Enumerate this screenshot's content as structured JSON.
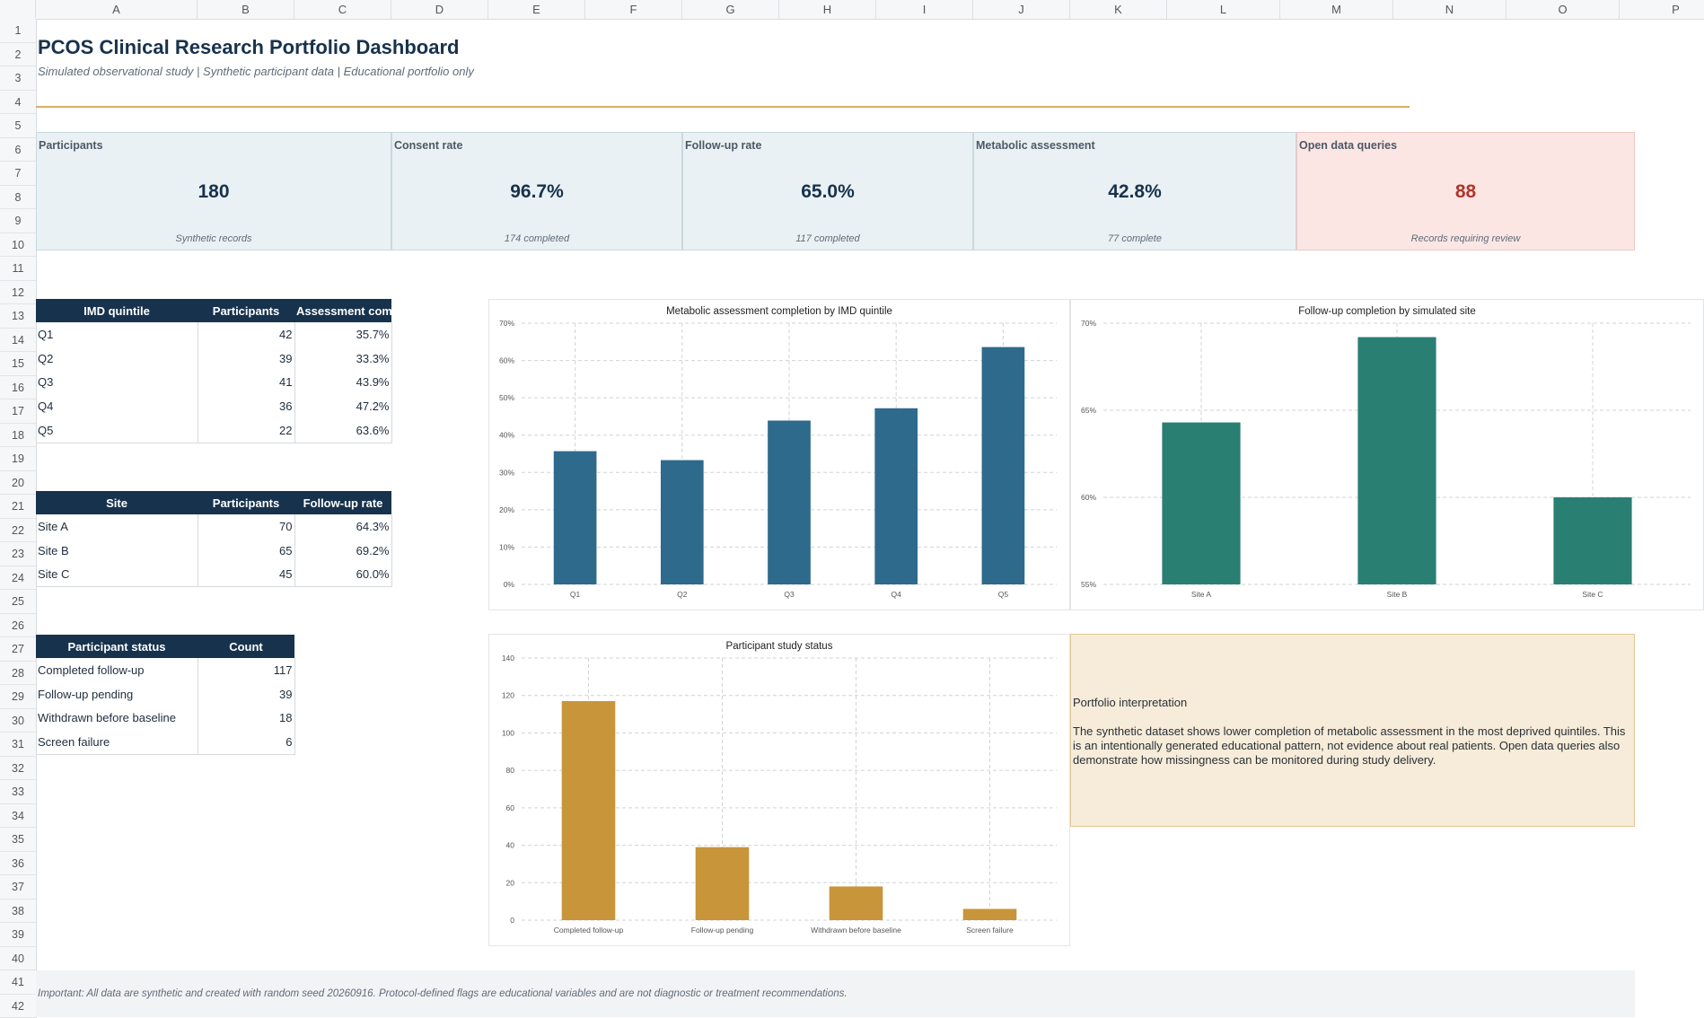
{
  "columns": [
    "A",
    "B",
    "C",
    "D",
    "E",
    "F",
    "G",
    "H",
    "I",
    "J",
    "K",
    "L",
    "M",
    "N",
    "O",
    "P"
  ],
  "rows": [
    1,
    2,
    3,
    4,
    5,
    6,
    7,
    8,
    9,
    10,
    11,
    12,
    13,
    14,
    15,
    16,
    17,
    18,
    19,
    20,
    21,
    22,
    23,
    24,
    25,
    26,
    27,
    28,
    29,
    30,
    31,
    32,
    33,
    34,
    35,
    36,
    37,
    38,
    39,
    40,
    41,
    42
  ],
  "header": {
    "title": "PCOS Clinical Research Portfolio Dashboard",
    "subtitle": "Simulated observational study | Synthetic participant data | Educational portfolio only"
  },
  "kpis": [
    {
      "label": "Participants",
      "value": "180",
      "note": "Synthetic records"
    },
    {
      "label": "Consent rate",
      "value": "96.7%",
      "note": "174 completed"
    },
    {
      "label": "Follow-up rate",
      "value": "65.0%",
      "note": "117 completed"
    },
    {
      "label": "Metabolic assessment",
      "value": "42.8%",
      "note": "77 complete"
    },
    {
      "label": "Open data queries",
      "value": "88",
      "note": "Records requiring review"
    }
  ],
  "imd_table": {
    "headers": [
      "IMD quintile",
      "Participants",
      "Assessment com"
    ],
    "rows": [
      [
        "Q1",
        "42",
        "35.7%"
      ],
      [
        "Q2",
        "39",
        "33.3%"
      ],
      [
        "Q3",
        "41",
        "43.9%"
      ],
      [
        "Q4",
        "36",
        "47.2%"
      ],
      [
        "Q5",
        "22",
        "63.6%"
      ]
    ]
  },
  "site_table": {
    "headers": [
      "Site",
      "Participants",
      "Follow-up rate"
    ],
    "rows": [
      [
        "Site A",
        "70",
        "64.3%"
      ],
      [
        "Site B",
        "65",
        "69.2%"
      ],
      [
        "Site C",
        "45",
        "60.0%"
      ]
    ]
  },
  "status_table": {
    "headers": [
      "Participant status",
      "Count"
    ],
    "rows": [
      [
        "Completed follow-up",
        "117"
      ],
      [
        "Follow-up pending",
        "39"
      ],
      [
        "Withdrawn before baseline",
        "18"
      ],
      [
        "Screen failure",
        "6"
      ]
    ]
  },
  "chart_data": [
    {
      "type": "bar",
      "title": "Metabolic assessment completion by IMD quintile",
      "categories": [
        "Q1",
        "Q2",
        "Q3",
        "Q4",
        "Q5"
      ],
      "values": [
        35.7,
        33.3,
        43.9,
        47.2,
        63.6
      ],
      "ylim": [
        0,
        70
      ],
      "yticks": [
        0,
        10,
        20,
        30,
        40,
        50,
        60,
        70
      ],
      "ytick_labels": [
        "0%",
        "10%",
        "20%",
        "30%",
        "40%",
        "50%",
        "60%",
        "70%"
      ],
      "color": "#2e6a8c",
      "grid": true
    },
    {
      "type": "bar",
      "title": "Follow-up completion by simulated site",
      "categories": [
        "Site A",
        "Site B",
        "Site C"
      ],
      "values": [
        64.3,
        69.2,
        60.0
      ],
      "ylim": [
        55,
        70
      ],
      "yticks": [
        55,
        60,
        65,
        70
      ],
      "ytick_labels": [
        "55%",
        "60%",
        "65%",
        "70%"
      ],
      "color": "#2a7f73",
      "grid": true
    },
    {
      "type": "bar",
      "title": "Participant study status",
      "categories": [
        "Completed follow-up",
        "Follow-up pending",
        "Withdrawn before baseline",
        "Screen failure"
      ],
      "values": [
        117,
        39,
        18,
        6
      ],
      "ylim": [
        0,
        140
      ],
      "yticks": [
        0,
        20,
        40,
        60,
        80,
        100,
        120,
        140
      ],
      "ytick_labels": [
        "0",
        "20",
        "40",
        "60",
        "80",
        "100",
        "120",
        "140"
      ],
      "color": "#c8953a",
      "grid": true
    }
  ],
  "interpretation": {
    "heading": "Portfolio interpretation",
    "body": "The synthetic dataset shows lower completion of metabolic assessment in the most deprived quintiles. This is an intentionally generated educational pattern, not evidence about real patients. Open data queries also demonstrate how missingness can be monitored during study delivery."
  },
  "footer": {
    "note": "Important: All data are synthetic and created with random seed 20260916. Protocol-defined flags are educational variables and are not diagnostic or treatment recommendations."
  }
}
